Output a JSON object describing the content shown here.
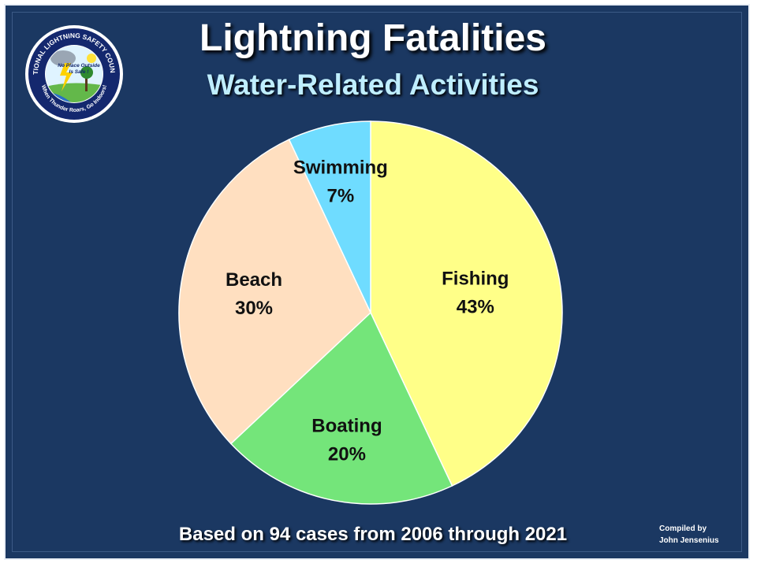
{
  "header": {
    "title": "Lightning Fatalities",
    "subtitle": "Water-Related Activities"
  },
  "logo": {
    "ring_text": "NATIONAL LIGHTNING SAFETY COUNCIL",
    "ring_text_bottom": "When Thunder Roars, Go Indoors!",
    "center_text_1": "No Place Outside",
    "center_text_2": "Is Safe !"
  },
  "footer": {
    "note": "Based on 94 cases from 2006 through 2021",
    "credit_line_1": "Compiled by",
    "credit_line_2": "John Jensenius"
  },
  "colors": {
    "background": "#1b3862",
    "title": "#ffffff",
    "subtitle": "#bfeeff"
  },
  "chart_data": {
    "type": "pie",
    "title": "Lightning Fatalities",
    "subtitle": "Water-Related Activities",
    "slices": [
      {
        "label": "Fishing",
        "value": 43,
        "value_label": "43%",
        "color": "#ffff88"
      },
      {
        "label": "Boating",
        "value": 20,
        "value_label": "20%",
        "color": "#74e57a"
      },
      {
        "label": "Beach",
        "value": 30,
        "value_label": "30%",
        "color": "#ffdfc0"
      },
      {
        "label": "Swimming",
        "value": 7,
        "value_label": "7%",
        "color": "#6fdcff"
      }
    ]
  }
}
